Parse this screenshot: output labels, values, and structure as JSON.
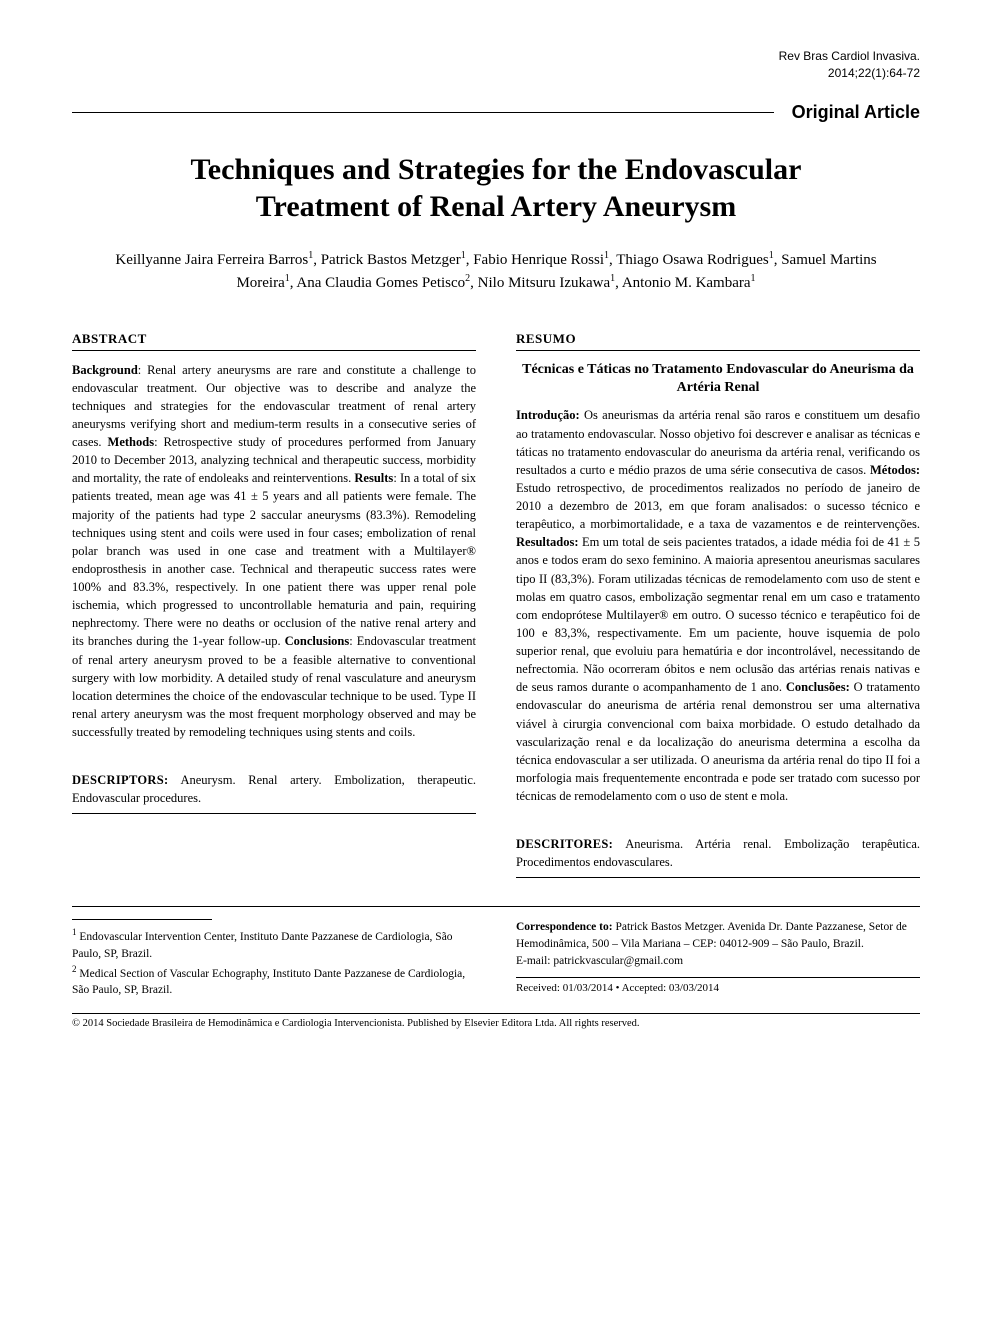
{
  "journal": {
    "line1": "Rev Bras Cardiol Invasiva.",
    "line2": "2014;22(1):64-72"
  },
  "section_label": "Original Article",
  "title": "Techniques and Strategies for the Endovascular Treatment of Renal Artery Aneurysm",
  "authors_html": "Keillyanne Jaira Ferreira Barros<sup>1</sup>, Patrick Bastos Metzger<sup>1</sup>, Fabio Henrique Rossi<sup>1</sup>, Thiago Osawa Rodrigues<sup>1</sup>, Samuel Martins Moreira<sup>1</sup>, Ana Claudia Gomes Petisco<sup>2</sup>, Nilo Mitsuru Izukawa<sup>1</sup>, Antonio M. Kambara<sup>1</sup>",
  "abstract": {
    "heading": "ABSTRACT",
    "body_html": "<b>Background</b>: Renal artery aneurysms are rare and constitute a challenge to endovascular treatment. Our objective was to describe and analyze the techniques and strategies for the endovascular treatment of renal artery aneurysms verifying short and medium-term results in a consecutive series of cases. <b>Methods</b>: Retrospective study of procedures performed from January 2010 to December 2013, analyzing technical and therapeutic success, morbidity and mortality, the rate of endoleaks and reinterventions. <b>Results</b>: In a total of six patients treated, mean age was 41 ± 5 years and all patients were female. The majority of the patients had type 2 saccular aneurysms (83.3%). Remodeling techniques using stent and coils were used in four cases; embolization of renal polar branch was used in one case and treatment with a Multilayer® endoprosthesis in another case. Technical and therapeutic success rates were 100% and 83.3%, respectively. In one patient there was upper renal pole ischemia, which progressed to uncontrollable hematuria and pain, requiring nephrectomy. There were no deaths or occlusion of the native renal artery and its branches during the 1-year follow-up. <b>Conclusions</b>: Endovascular treatment of renal artery aneurysm proved to be a feasible alternative to conventional surgery with low morbidity. A detailed study of renal vasculature and aneurysm location determines the choice of the endovascular technique to be used. Type II renal artery aneurysm was the most frequent morphology observed and may be successfully treated by remodeling techniques using stents and coils.",
    "descriptors_label": "DESCRIPTORS:",
    "descriptors_text": "Aneurysm. Renal artery. Embolization, therapeutic. Endovascular procedures."
  },
  "resumo": {
    "heading": "RESUMO",
    "title": "Técnicas e Táticas no Tratamento Endovascular do Aneurisma da Artéria Renal",
    "body_html": "<b>Introdução:</b> Os aneurismas da artéria renal são raros e constituem um desafio ao tratamento endovascular. Nosso objetivo foi descrever e analisar as técnicas e táticas no tratamento endovascular do aneurisma da artéria renal, verificando os resultados a curto e médio prazos de uma série consecutiva de casos. <b>Métodos:</b> Estudo retrospectivo, de procedimentos realizados no período de janeiro de 2010 a dezembro de 2013, em que foram analisados: o sucesso técnico e terapêutico, a morbimortalidade, e a taxa de vazamentos e de reintervenções. <b>Resultados:</b> Em um total de seis pacientes tratados, a idade média foi de 41 ± 5 anos e todos eram do sexo feminino. A maioria apresentou aneurismas saculares tipo II (83,3%). Foram utilizadas técnicas de remodelamento com uso de stent e molas em quatro casos, embolização segmentar renal em um caso e tratamento com endoprótese Multilayer® em outro. O sucesso técnico e terapêutico foi de 100 e 83,3%, respectivamente. Em um paciente, houve isquemia de polo superior renal, que evoluiu para hematúria e dor incontrolável, necessitando de nefrectomia. Não ocorreram óbitos e nem oclusão das artérias renais nativas e de seus ramos durante o acompanhamento de 1 ano. <b>Conclusões:</b> O tratamento endovascular do aneurisma de artéria renal demonstrou ser uma alternativa viável à cirurgia convencional com baixa morbidade. O estudo detalhado da vascularização renal e da localização do aneurisma determina a escolha da técnica endovascular a ser utilizada. O aneurisma da artéria renal do tipo II foi a morfologia mais frequentemente encontrada e pode ser tratado com sucesso por técnicas de remodelamento com o uso de stent e mola.",
    "descriptors_label": "DESCRITORES:",
    "descriptors_text": "Aneurisma. Artéria renal. Embolização terapêutica. Procedimentos endovasculares."
  },
  "affiliations": [
    "Endovascular Intervention Center, Instituto Dante Pazzanese de Cardiologia, São Paulo, SP, Brazil.",
    "Medical Section of Vascular Echography, Instituto Dante Pazzanese de Cardiologia, São Paulo, SP, Brazil."
  ],
  "correspondence": {
    "label": "Correspondence to:",
    "text": "Patrick Bastos Metzger. Avenida Dr. Dante Pazzanese, Setor de Hemodinâmica, 500 – Vila Mariana – CEP: 04012-909 – São Paulo, Brazil.",
    "email_label": "E-mail:",
    "email": "patrickvascular@gmail.com"
  },
  "dates": "Received: 01/03/2014 • Accepted: 03/03/2014",
  "copyright": "© 2014 Sociedade Brasileira de Hemodinâmica e Cardiologia Intervencionista. Published by Elsevier Editora Ltda. All rights reserved."
}
